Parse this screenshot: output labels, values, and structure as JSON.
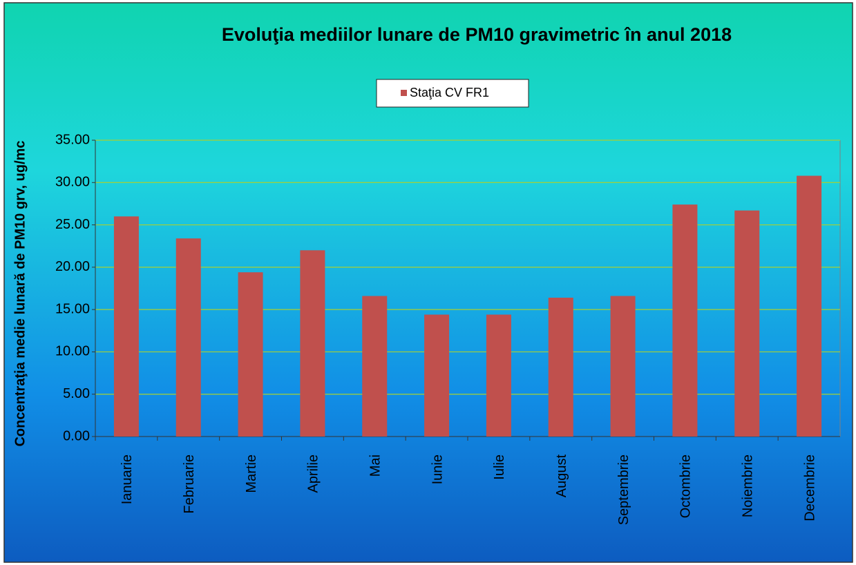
{
  "chart_data": {
    "type": "bar",
    "title": "Evoluţia mediilor lunare de PM10 gravimetric în anul 2018",
    "y_label": "Concentraţia medie lunară de PM10 grv, ug/mc",
    "categories": [
      "Ianuarie",
      "Februarie",
      "Martie",
      "Aprilie",
      "Mai",
      "Iunie",
      "Iulie",
      "August",
      "Septembrie",
      "Octombrie",
      "Noiembrie",
      "Decembrie"
    ],
    "series": [
      {
        "name": "Staţia CV FR1",
        "color": "#c0504d",
        "values": [
          26.0,
          23.4,
          19.4,
          22.0,
          16.6,
          14.4,
          14.4,
          16.4,
          16.6,
          27.4,
          26.7,
          30.8
        ]
      }
    ],
    "ylim": [
      0,
      35
    ],
    "yticks": [
      {
        "value": 0,
        "label": "0.00"
      },
      {
        "value": 5,
        "label": "5.00"
      },
      {
        "value": 10,
        "label": "10.00"
      },
      {
        "value": 15,
        "label": "15.00"
      },
      {
        "value": 20,
        "label": "20.00"
      },
      {
        "value": 25,
        "label": "25.00"
      },
      {
        "value": 30,
        "label": "30.00"
      },
      {
        "value": 35,
        "label": "35.00"
      }
    ],
    "grid": true,
    "legend": "top"
  }
}
